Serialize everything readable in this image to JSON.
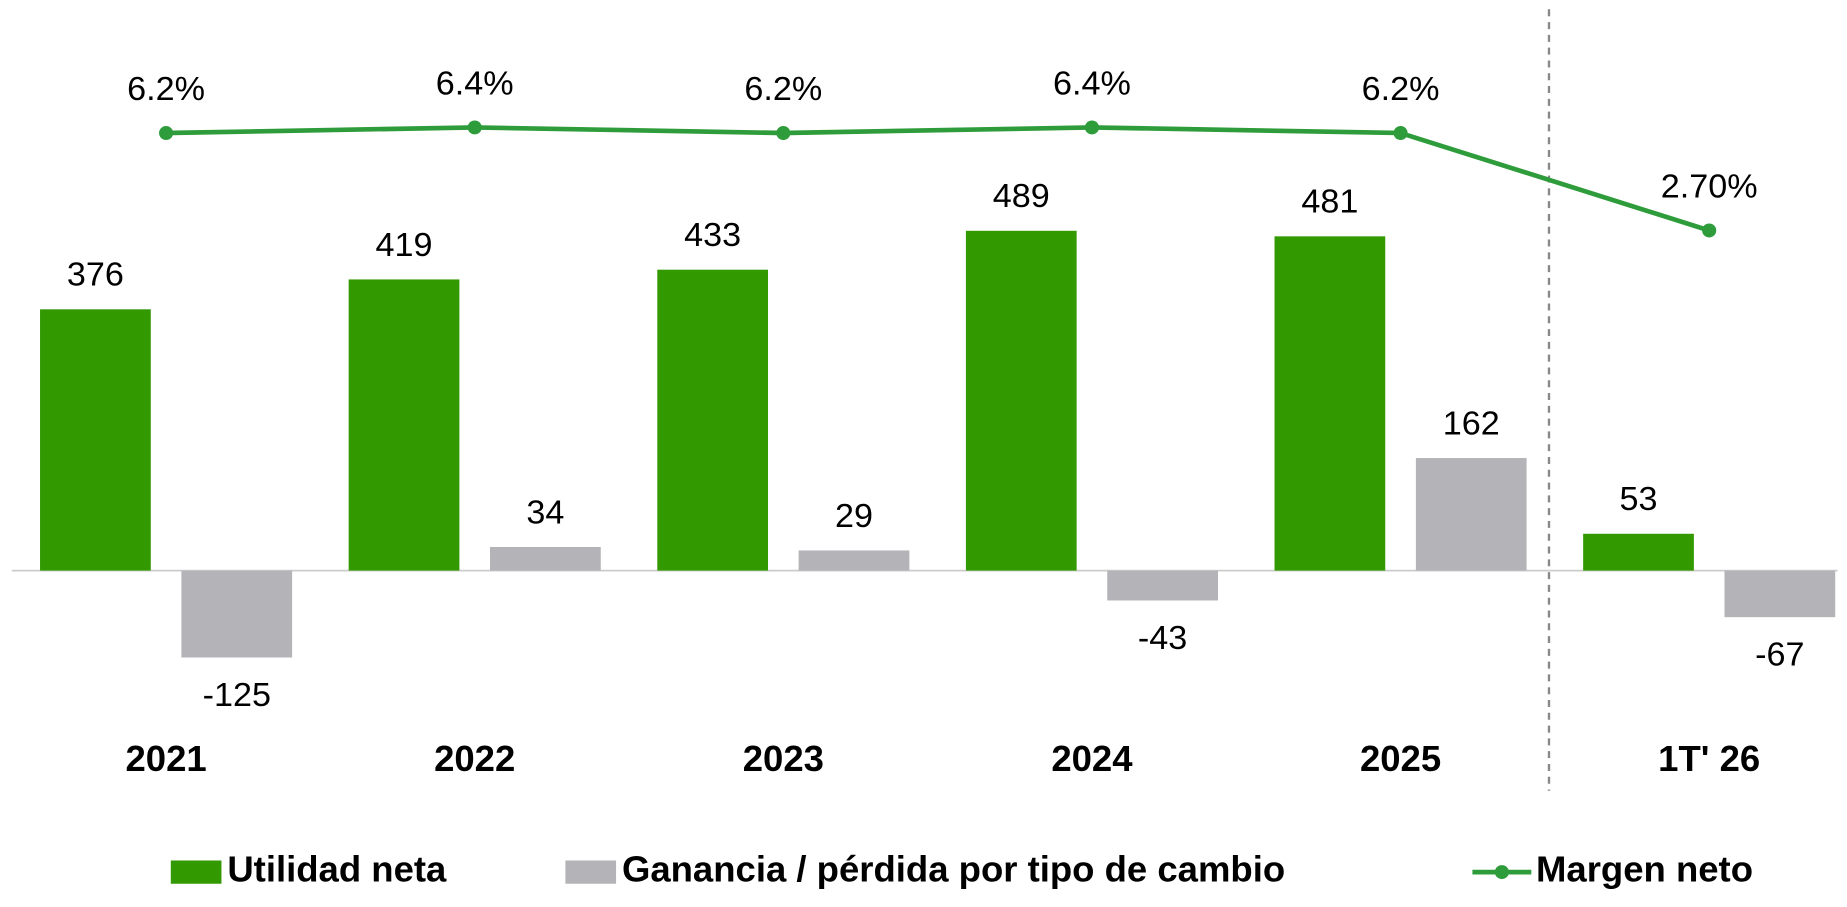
{
  "chart_data": {
    "type": "bar",
    "categories": [
      "2021",
      "2022",
      "2023",
      "2024",
      "2025",
      "1T' 26"
    ],
    "series": [
      {
        "name": "Utilidad neta",
        "color": "#339900",
        "values": [
          376,
          419,
          433,
          489,
          481,
          53
        ]
      },
      {
        "name": "Ganancia / pérdida por tipo de cambio",
        "color": "#b3b3b8",
        "values": [
          -125,
          34,
          29,
          -43,
          162,
          -67
        ]
      },
      {
        "name": "Margen neto",
        "type": "line",
        "axis": "y2",
        "color": "#2e9c3a",
        "values": [
          6.2,
          6.4,
          6.2,
          6.4,
          6.2,
          2.7
        ],
        "value_labels": [
          "6.2%",
          "6.4%",
          "6.2%",
          "6.4%",
          "6.2%",
          "2.70%"
        ]
      }
    ],
    "ylim": [
      -300,
      800
    ],
    "y2lim": [
      -17,
      10.45
    ],
    "grid": false,
    "legend": "bottom"
  }
}
